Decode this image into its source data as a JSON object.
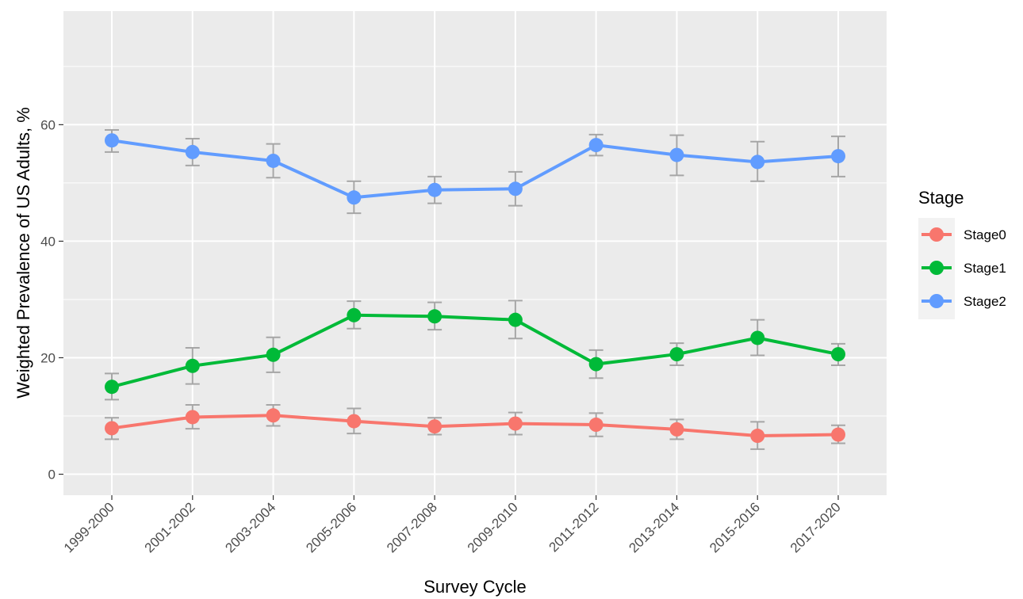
{
  "chart_data": {
    "type": "line",
    "categories": [
      "1999-2000",
      "2001-2002",
      "2003-2004",
      "2005-2006",
      "2007-2008",
      "2009-2010",
      "2011-2012",
      "2013-2014",
      "2015-2016",
      "2017-2020"
    ],
    "xlabel": "Survey Cycle",
    "ylabel": "Weighted Prevalence of US Adults, %",
    "ylim": [
      -3.6,
      79.5
    ],
    "yticks": [
      0,
      20,
      40,
      60
    ],
    "grid": true,
    "legend": {
      "title": "Stage",
      "placement": "right"
    },
    "series": [
      {
        "name": "Stage0",
        "color": "#F8766D",
        "values": [
          7.9,
          9.8,
          10.1,
          9.1,
          8.2,
          8.7,
          8.5,
          7.7,
          6.6,
          6.8
        ],
        "lower": [
          6.0,
          7.8,
          8.3,
          7.0,
          6.8,
          6.8,
          6.5,
          6.0,
          4.3,
          5.3
        ],
        "upper": [
          9.7,
          11.9,
          11.9,
          11.3,
          9.7,
          10.6,
          10.5,
          9.4,
          9.0,
          8.4
        ]
      },
      {
        "name": "Stage1",
        "color": "#00BA38",
        "values": [
          15.0,
          18.6,
          20.5,
          27.3,
          27.1,
          26.5,
          18.9,
          20.6,
          23.4,
          20.6
        ],
        "lower": [
          12.8,
          15.5,
          17.5,
          25.0,
          24.8,
          23.3,
          16.5,
          18.7,
          20.4,
          18.7
        ],
        "upper": [
          17.3,
          21.7,
          23.5,
          29.7,
          29.5,
          29.8,
          21.3,
          22.5,
          26.5,
          22.4
        ]
      },
      {
        "name": "Stage2",
        "color": "#619CFF",
        "values": [
          57.3,
          55.3,
          53.8,
          47.5,
          48.8,
          49.0,
          56.5,
          54.8,
          53.6,
          54.6
        ],
        "lower": [
          55.3,
          53.0,
          50.9,
          44.8,
          46.5,
          46.1,
          54.7,
          51.3,
          50.3,
          51.1
        ],
        "upper": [
          59.1,
          57.6,
          56.7,
          50.3,
          51.1,
          51.9,
          58.3,
          58.2,
          57.1,
          58.0
        ]
      }
    ]
  }
}
